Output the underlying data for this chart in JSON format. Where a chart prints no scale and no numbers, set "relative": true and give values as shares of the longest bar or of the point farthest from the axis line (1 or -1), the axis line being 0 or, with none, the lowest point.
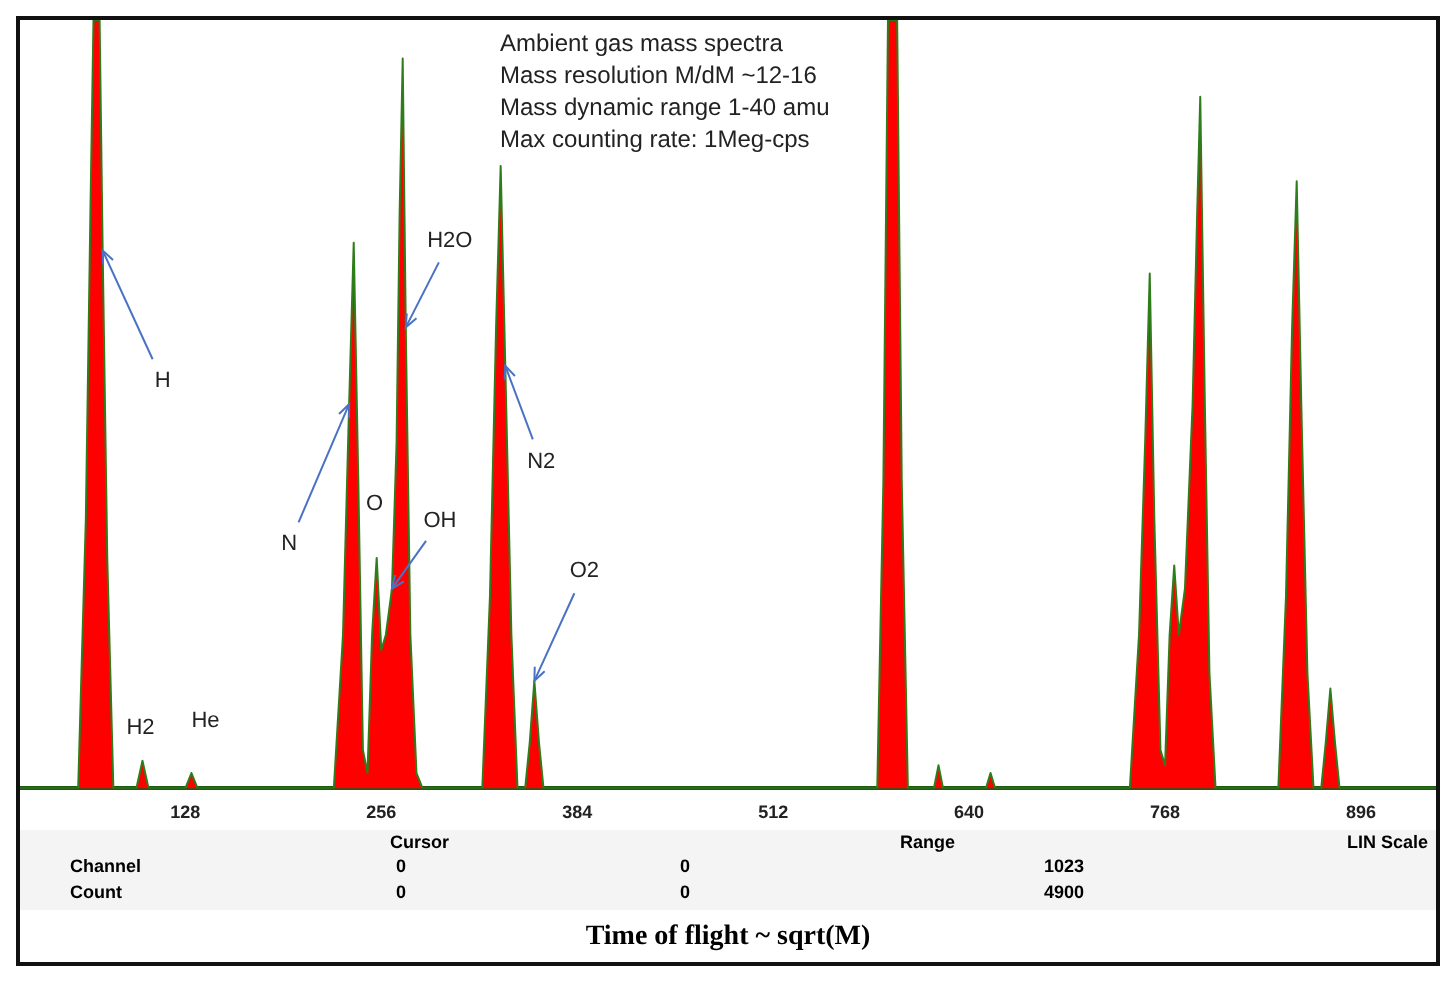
{
  "chart_data": {
    "type": "area",
    "relative": true,
    "xlabel": "Time of flight ~ sqrt(M)",
    "xlim": [
      20,
      945
    ],
    "xticks": [
      128,
      256,
      384,
      512,
      640,
      768,
      896
    ],
    "grid": false,
    "legend": false,
    "tick_labels": "x",
    "marker": "none",
    "x": [
      20,
      58,
      63,
      66,
      68,
      72,
      74,
      77,
      81,
      96,
      100,
      104,
      128,
      132,
      136,
      225,
      231,
      235,
      238,
      241,
      244,
      247,
      250,
      253,
      256,
      259,
      263,
      266,
      268,
      270,
      272,
      275,
      279,
      283,
      322,
      327,
      331,
      334,
      337,
      341,
      345,
      350,
      353,
      356,
      359,
      362,
      580,
      584,
      587,
      593,
      596,
      600,
      617,
      620,
      623,
      651,
      654,
      657,
      745,
      751,
      755,
      758,
      761,
      765,
      768,
      771,
      774,
      777,
      781,
      786,
      789,
      791,
      794,
      797,
      801,
      842,
      847,
      851,
      854,
      857,
      861,
      865,
      870,
      873,
      876,
      879,
      882,
      945
    ],
    "series": [
      {
        "color": "#ff0000",
        "values": [
          0,
          0,
          0.35,
          0.75,
          1,
          1,
          0.7,
          0.3,
          0,
          0,
          0.036,
          0,
          0,
          0.02,
          0,
          0,
          0.2,
          0.5,
          0.71,
          0.4,
          0.05,
          0.02,
          0.2,
          0.3,
          0.18,
          0.2,
          0.26,
          0.45,
          0.75,
          0.95,
          0.6,
          0.2,
          0.02,
          0,
          0,
          0.25,
          0.6,
          0.81,
          0.55,
          0.2,
          0,
          0,
          0.06,
          0.14,
          0.06,
          0,
          0,
          0.4,
          1,
          1,
          0.4,
          0,
          0,
          0.03,
          0,
          0,
          0.02,
          0,
          0,
          0.2,
          0.45,
          0.67,
          0.35,
          0.05,
          0.03,
          0.2,
          0.29,
          0.2,
          0.26,
          0.5,
          0.75,
          0.9,
          0.5,
          0.15,
          0,
          0,
          0.25,
          0.6,
          0.79,
          0.5,
          0.15,
          0,
          0,
          0.06,
          0.13,
          0.06,
          0,
          0
        ]
      }
    ],
    "annotations": [
      {
        "text": "H",
        "x": 74,
        "y": 0.7
      },
      {
        "text": "H2",
        "x": 100,
        "y": 0.036
      },
      {
        "text": "He",
        "x": 132,
        "y": 0.02
      },
      {
        "text": "N",
        "x": 235,
        "y": 0.5
      },
      {
        "text": "O",
        "x": 253,
        "y": 0.3
      },
      {
        "text": "H2O",
        "x": 272,
        "y": 0.6
      },
      {
        "text": "OH",
        "x": 263,
        "y": 0.26
      },
      {
        "text": "N2",
        "x": 337,
        "y": 0.55
      },
      {
        "text": "O2",
        "x": 356,
        "y": 0.14
      },
      "Ambient gas mass spectra",
      "Mass resolution M/dM ~12-16",
      "Mass dynamic range 1-40 amu",
      "Max counting rate: 1Meg-cps",
      "Cursor",
      "Range",
      "LIN Scale",
      "Channel",
      "0",
      "0",
      "1023",
      "Count",
      "0",
      "0",
      "4900"
    ]
  }
}
